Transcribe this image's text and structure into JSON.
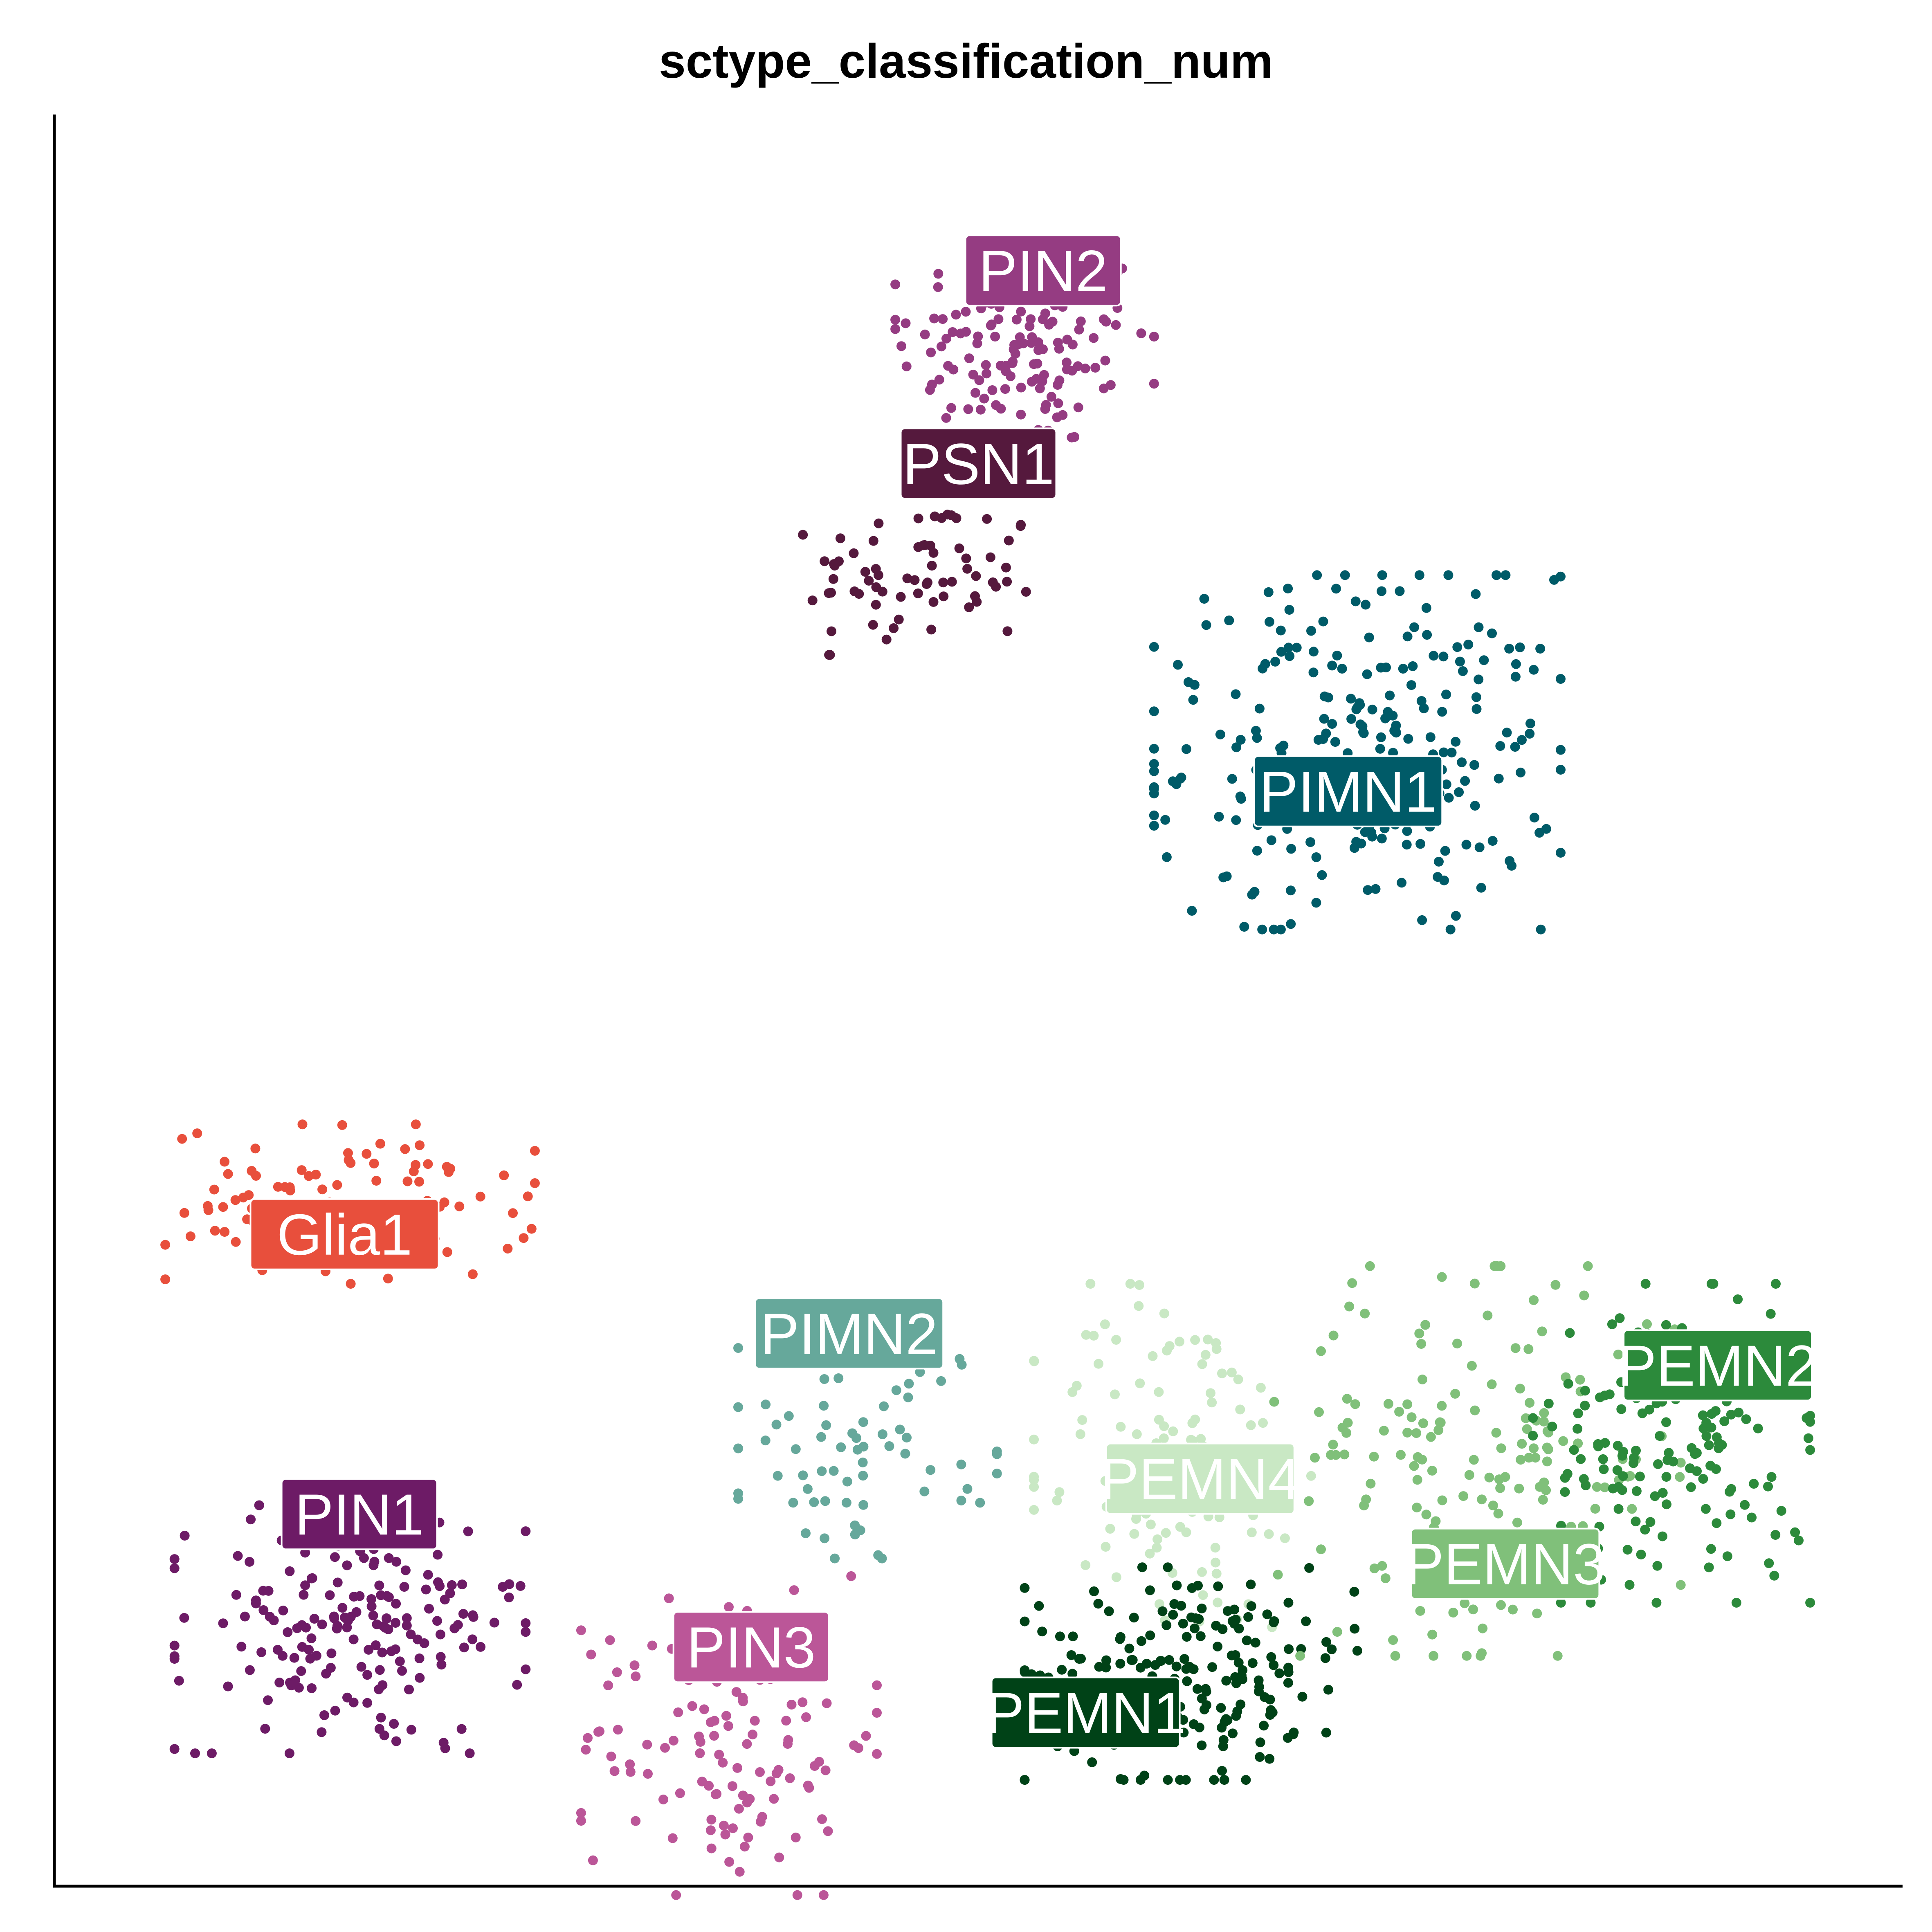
{
  "chart_data": {
    "type": "scatter",
    "title": "sctype_classification_num",
    "xlabel": "",
    "ylabel": "",
    "xlim": [
      0,
      100
    ],
    "ylim": [
      0,
      100
    ],
    "grid": false,
    "legend": "none",
    "series": [
      {
        "name": "PIN2",
        "color": "#953c82",
        "center": [
          52.5,
          87.0
        ],
        "spread": [
          7.0,
          6.0
        ],
        "count": 150,
        "label_pos": [
          53.5,
          91.2
        ]
      },
      {
        "name": "PSN1",
        "color": "#55193d",
        "center": [
          47.0,
          74.0
        ],
        "spread": [
          6.5,
          4.5
        ],
        "count": 70,
        "label_pos": [
          50.0,
          80.3
        ]
      },
      {
        "name": "PIMN1",
        "color": "#005b68",
        "center": [
          70.5,
          64.0
        ],
        "spread": [
          11.0,
          10.0
        ],
        "count": 260,
        "label_pos": [
          70.0,
          61.8
        ]
      },
      {
        "name": "Glia1",
        "color": "#e84f3c",
        "center": [
          16.0,
          38.5
        ],
        "spread": [
          10.0,
          4.5
        ],
        "count": 100,
        "label_pos": [
          15.7,
          36.8
        ]
      },
      {
        "name": "PIMN2",
        "color": "#66a89b",
        "center": [
          44.0,
          25.0
        ],
        "spread": [
          7.0,
          6.5
        ],
        "count": 70,
        "label_pos": [
          43.0,
          31.2
        ]
      },
      {
        "name": "PIN1",
        "color": "#6d1b66",
        "center": [
          16.0,
          14.5
        ],
        "spread": [
          9.5,
          7.0
        ],
        "count": 190,
        "label_pos": [
          16.5,
          21.0
        ]
      },
      {
        "name": "PIN3",
        "color": "#bb5698",
        "center": [
          36.5,
          8.5
        ],
        "spread": [
          8.0,
          9.0
        ],
        "count": 120,
        "label_pos": [
          37.7,
          13.5
        ]
      },
      {
        "name": "PEMN4",
        "color": "#c9e8c4",
        "center": [
          60.5,
          24.0
        ],
        "spread": [
          7.5,
          10.0
        ],
        "count": 120,
        "label_pos": [
          62.0,
          23.0
        ]
      },
      {
        "name": "PEMN1",
        "color": "#004217",
        "center": [
          61.5,
          12.0
        ],
        "spread": [
          9.0,
          6.0
        ],
        "count": 200,
        "label_pos": [
          55.8,
          9.8
        ]
      },
      {
        "name": "PEMN3",
        "color": "#80c07a",
        "center": [
          77.0,
          24.0
        ],
        "spread": [
          11.0,
          11.0
        ],
        "count": 170,
        "label_pos": [
          78.5,
          18.2
        ]
      },
      {
        "name": "PEMN2",
        "color": "#2c8a3b",
        "center": [
          87.5,
          25.0
        ],
        "spread": [
          7.5,
          9.0
        ],
        "count": 160,
        "label_pos": [
          90.0,
          29.4
        ]
      }
    ]
  }
}
